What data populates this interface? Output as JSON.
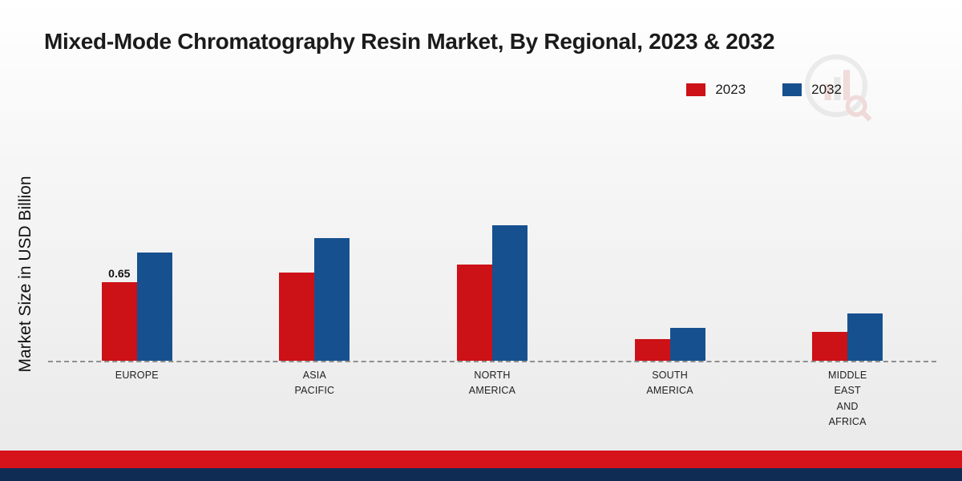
{
  "page": {
    "title": "Mixed-Mode Chromatography Resin Market, By Regional, 2023 & 2032",
    "ylabel": "Market Size in USD Billion"
  },
  "footer": {
    "red_strip_color": "#d6121a",
    "navy_strip_color": "#0f2c55"
  },
  "chart_data": {
    "type": "bar",
    "title": "Mixed-Mode Chromatography Resin Market, By Regional, 2023 & 2032",
    "xlabel": "",
    "ylabel": "Market Size in USD Billion",
    "categories": [
      "EUROPE",
      "ASIA PACIFIC",
      "NORTH AMERICA",
      "SOUTH AMERICA",
      "MIDDLE EAST AND AFRICA"
    ],
    "category_display": [
      "EUROPE",
      "ASIA\nPACIFIC",
      "NORTH\nAMERICA",
      "SOUTH\nAMERICA",
      "MIDDLE\nEAST\nAND\nAFRICA"
    ],
    "series": [
      {
        "name": "2023",
        "color": "#cc1117",
        "values": [
          0.65,
          0.73,
          0.8,
          0.18,
          0.24
        ],
        "value_labels": [
          "0.65",
          "",
          "",
          "",
          ""
        ]
      },
      {
        "name": "2032",
        "color": "#17508f",
        "values": [
          0.9,
          1.02,
          1.13,
          0.27,
          0.39
        ],
        "value_labels": [
          "",
          "",
          "",
          "",
          ""
        ]
      }
    ],
    "ylim": [
      0,
      1.25
    ],
    "grid": false,
    "legend_position": "top-right",
    "baseline_style": "dashed"
  }
}
